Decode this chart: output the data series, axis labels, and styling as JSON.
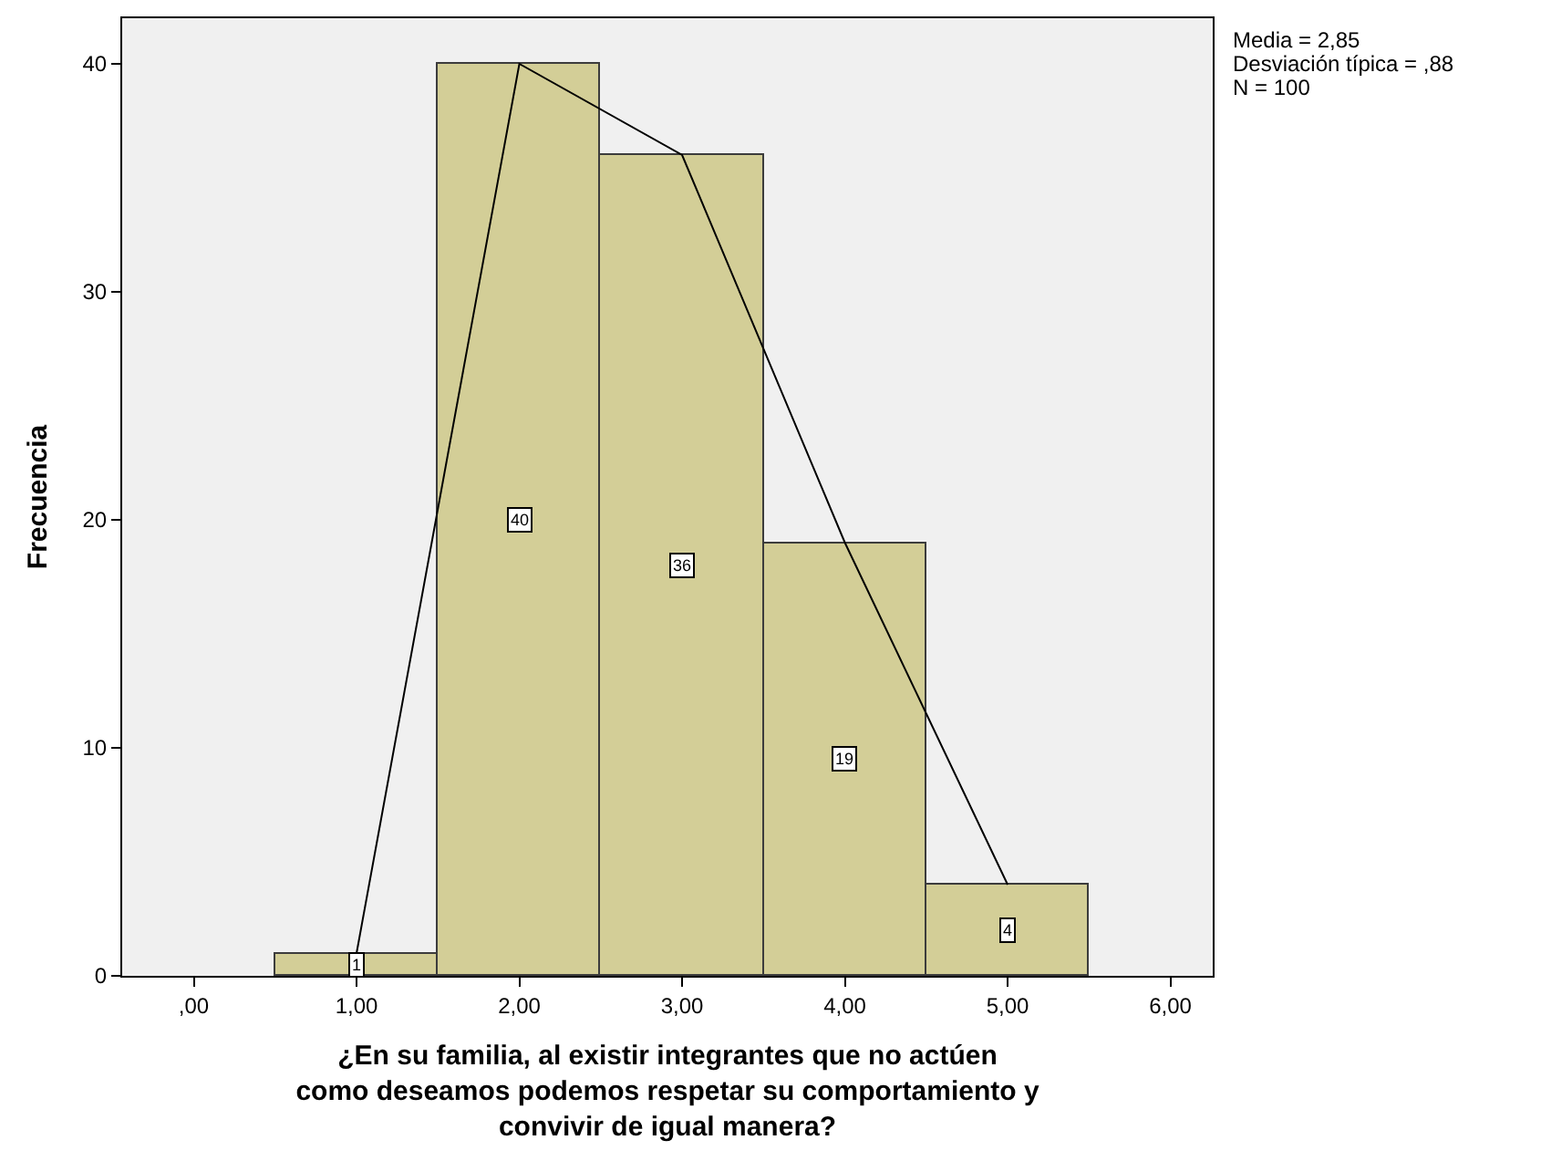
{
  "chart_data": {
    "type": "histogram",
    "xlabel": "¿En su familia, al existir integrantes que no actúen\ncomo deseamos podemos respetar su comportamiento y\nconvivir de igual manera?",
    "ylabel": "Frecuencia",
    "bins": [
      0.5,
      1.5,
      2.5,
      3.5,
      4.5,
      5.5
    ],
    "values": [
      1,
      40,
      36,
      19,
      4
    ],
    "color": "#d3ce97",
    "value_labels": [
      "1",
      "40",
      "36",
      "19",
      "4"
    ],
    "series": [
      {
        "type": "line",
        "x": [
          1,
          2,
          3,
          4,
          5
        ],
        "values": [
          1,
          40,
          36,
          19,
          4
        ],
        "color": "#000000"
      }
    ],
    "xlim": [
      -0.44,
      6.26
    ],
    "ylim": [
      0,
      42
    ],
    "xticks": [
      {
        "value": 0,
        "label": ",00"
      },
      {
        "value": 1,
        "label": "1,00"
      },
      {
        "value": 2,
        "label": "2,00"
      },
      {
        "value": 3,
        "label": "3,00"
      },
      {
        "value": 4,
        "label": "4,00"
      },
      {
        "value": 5,
        "label": "5,00"
      },
      {
        "value": 6,
        "label": "6,00"
      }
    ],
    "yticks": [
      0,
      10,
      20,
      30,
      40
    ],
    "grid": false,
    "annotations": [
      "Media = 2,85",
      "Desviación típica = ,88",
      "N = 100"
    ]
  }
}
